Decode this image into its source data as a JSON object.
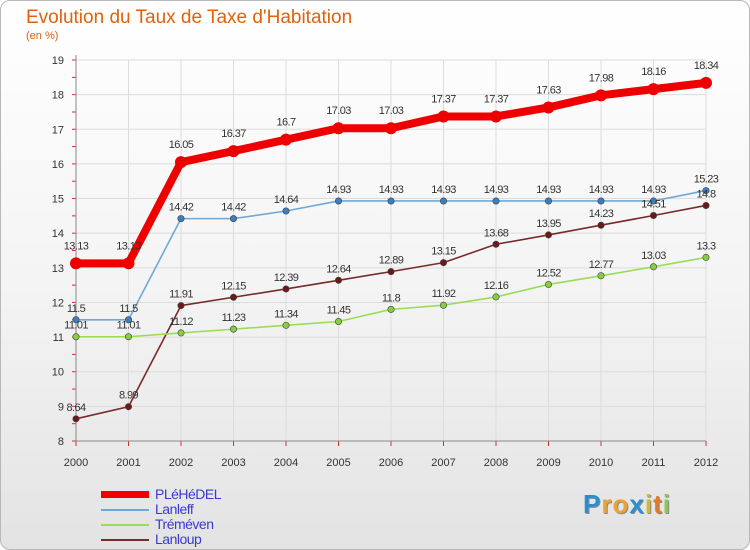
{
  "title": "Evolution du Taux de Taxe d'Habitation",
  "subtitle": "(en %)",
  "logo": {
    "letters": [
      "P",
      "r",
      "o",
      "x",
      "i",
      "t",
      "i"
    ],
    "colors": [
      "#2a8fd0",
      "#e8a33a",
      "#e8a33a",
      "#2a8fd0",
      "#d6b82c",
      "#e07a2a",
      "#8cc84b"
    ]
  },
  "chart_data": {
    "type": "line",
    "x": [
      2000,
      2001,
      2002,
      2003,
      2004,
      2005,
      2006,
      2007,
      2008,
      2009,
      2010,
      2011,
      2012
    ],
    "yticks": [
      "8",
      "9",
      "10",
      "11",
      "12",
      "13",
      "14",
      "15",
      "16",
      "17",
      "18",
      "19"
    ],
    "ylim": [
      8,
      19
    ],
    "grid": true,
    "legend": "bottom-left",
    "series": [
      {
        "name": "PLéHéDEL",
        "color": "#ee0000",
        "marker": "#ee0000",
        "values": [
          13.13,
          13.13,
          16.05,
          16.37,
          16.7,
          17.03,
          17.03,
          17.37,
          17.37,
          17.63,
          17.98,
          18.16,
          18.34
        ],
        "labels": [
          "13.13",
          "13.13",
          "16.05",
          "16.37",
          "16.7",
          "17.03",
          "17.03",
          "17.37",
          "17.37",
          "17.63",
          "17.98",
          "18.16",
          "18.34"
        ]
      },
      {
        "name": "Lanleff",
        "color": "#6fa8d6",
        "marker": "#3a7fc0",
        "values": [
          11.5,
          11.5,
          14.42,
          14.42,
          14.64,
          14.93,
          14.93,
          14.93,
          14.93,
          14.93,
          14.93,
          14.93,
          15.23
        ],
        "labels": [
          "11.5",
          "11.5",
          "14.42",
          "14.42",
          "14.64",
          "14.93",
          "14.93",
          "14.93",
          "14.93",
          "14.93",
          "14.93",
          "14.93",
          "15.23"
        ]
      },
      {
        "name": "Tréméven",
        "color": "#99dd55",
        "marker": "#88cc44",
        "values": [
          11.01,
          11.01,
          11.12,
          11.23,
          11.34,
          11.45,
          11.8,
          11.92,
          12.16,
          12.52,
          12.77,
          13.03,
          13.3
        ],
        "labels": [
          "11.01",
          "11.01",
          "11.12",
          "11.23",
          "11.34",
          "11.45",
          "11.8",
          "11.92",
          "12.16",
          "12.52",
          "12.77",
          "13.03",
          "13.3"
        ]
      },
      {
        "name": "Lanloup",
        "color": "#7a2a2a",
        "marker": "#6a1a1a",
        "values": [
          8.64,
          8.99,
          11.91,
          12.15,
          12.39,
          12.64,
          12.89,
          13.15,
          13.68,
          13.95,
          14.23,
          14.51,
          14.8
        ],
        "labels": [
          "8.64",
          "8.99",
          "11.91",
          "12.15",
          "12.39",
          "12.64",
          "12.89",
          "13.15",
          "13.68",
          "13.95",
          "14.23",
          "14.51",
          "14.8"
        ]
      }
    ]
  }
}
